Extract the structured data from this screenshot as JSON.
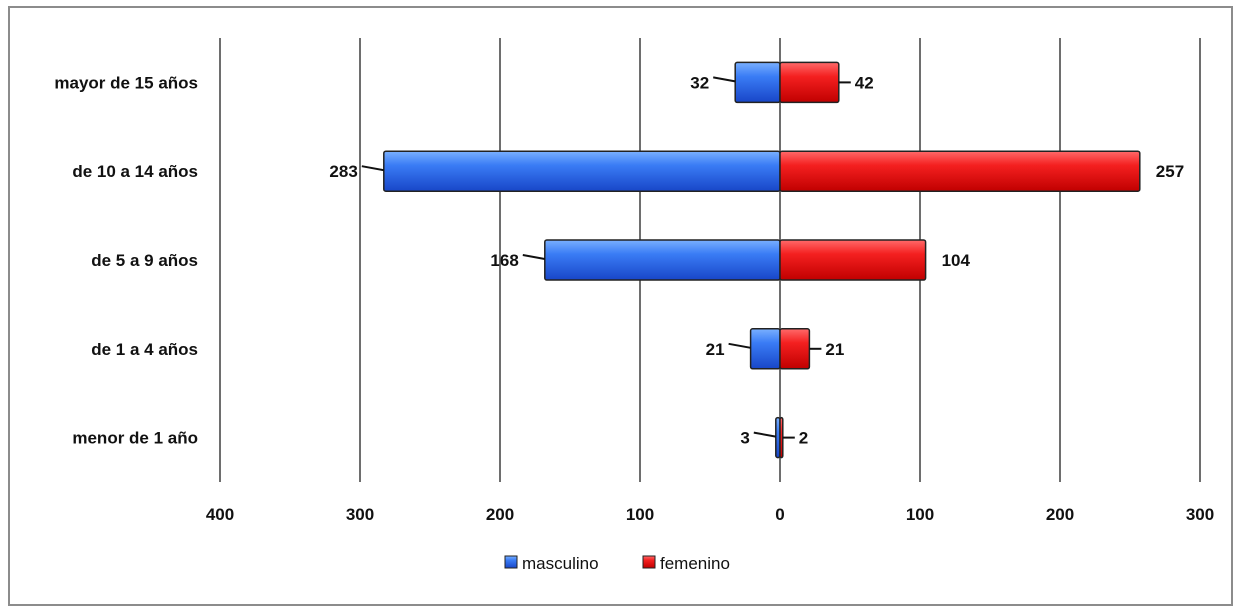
{
  "chart_data": {
    "type": "bar",
    "orientation": "horizontal",
    "layout": "population-pyramid",
    "categories": [
      "mayor de 15 años",
      "de 10 a 14 años",
      "de 5 a 9 años",
      "de 1 a 4 años",
      "menor de 1 año"
    ],
    "series": [
      {
        "name": "masculino",
        "side": "left",
        "color": "#2f6cf0",
        "values": [
          32,
          283,
          168,
          21,
          3
        ]
      },
      {
        "name": "femenino",
        "side": "right",
        "color": "#f21414",
        "values": [
          42,
          257,
          104,
          21,
          2
        ]
      }
    ],
    "x_ticks": [
      {
        "value": -400,
        "label": "400"
      },
      {
        "value": -300,
        "label": "300"
      },
      {
        "value": -200,
        "label": "200"
      },
      {
        "value": -100,
        "label": "100"
      },
      {
        "value": 0,
        "label": "0"
      },
      {
        "value": 100,
        "label": "100"
      },
      {
        "value": 200,
        "label": "200"
      },
      {
        "value": 300,
        "label": "300"
      }
    ],
    "xlim": [
      -400,
      300
    ],
    "grid": "vertical",
    "legend_position": "bottom",
    "title": "",
    "xlabel": "",
    "ylabel": ""
  }
}
